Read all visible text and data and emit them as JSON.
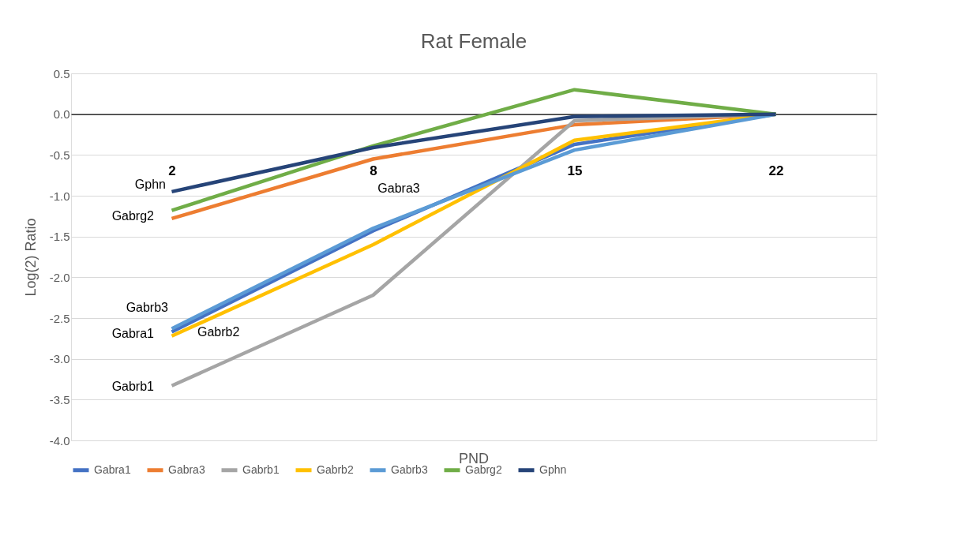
{
  "chart_data": {
    "type": "line",
    "title": "Rat Female",
    "xlabel": "PND",
    "ylabel": "Log(2) Ratio",
    "categories": [
      "2",
      "8",
      "15",
      "22"
    ],
    "series": [
      {
        "name": "Gabra1",
        "color": "#4472c4",
        "values": [
          -2.67,
          -1.43,
          -0.37,
          0.0
        ]
      },
      {
        "name": "Gabra3",
        "color": "#ed7d31",
        "values": [
          -1.28,
          -0.55,
          -0.13,
          0.0
        ]
      },
      {
        "name": "Gabrb1",
        "color": "#a5a5a5",
        "values": [
          -3.33,
          -2.22,
          -0.08,
          0.0
        ]
      },
      {
        "name": "Gabrb2",
        "color": "#ffc000",
        "values": [
          -2.72,
          -1.6,
          -0.32,
          0.0
        ]
      },
      {
        "name": "Gabrb3",
        "color": "#5b9bd5",
        "values": [
          -2.63,
          -1.4,
          -0.44,
          0.0
        ]
      },
      {
        "name": "Gabrg2",
        "color": "#70ad47",
        "values": [
          -1.18,
          -0.39,
          0.3,
          0.0
        ]
      },
      {
        "name": "Gphn",
        "color": "#264478",
        "values": [
          -0.95,
          -0.41,
          -0.03,
          0.0
        ]
      }
    ],
    "ylim": [
      -4.0,
      0.5
    ],
    "yticks": [
      {
        "value": -4.0,
        "label": "-4.0"
      },
      {
        "value": -3.5,
        "label": "-3.5"
      },
      {
        "value": -3.0,
        "label": "-3.0"
      },
      {
        "value": -2.5,
        "label": "-2.5"
      },
      {
        "value": -2.0,
        "label": "-2.0"
      },
      {
        "value": -1.5,
        "label": "-1.5"
      },
      {
        "value": -1.0,
        "label": "-1.0"
      },
      {
        "value": -0.5,
        "label": "-0.5"
      },
      {
        "value": 0.0,
        "label": "0.0"
      },
      {
        "value": 0.5,
        "label": "0.5"
      }
    ],
    "grid": "y",
    "legend": "bottom",
    "marker": "none",
    "line_style": "solid",
    "annotations": [
      "Gphn",
      "Gabrg2",
      "Gabrb3",
      "Gabra1",
      "Gabrb2",
      "Gabrb1",
      "Gabra3"
    ]
  }
}
